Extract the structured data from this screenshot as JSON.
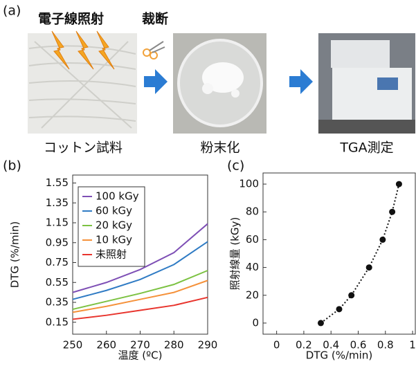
{
  "panel_a": {
    "panel_label": "(a)",
    "irradiation": "電子線照射",
    "cutting": "裁断",
    "captions": [
      "コットン試料",
      "粉末化",
      "TGA測定"
    ]
  },
  "chart_data": [
    {
      "type": "line",
      "panel_label": "(b)",
      "x_label": "温度 (ºC)",
      "y_label": "DTG (%/min)",
      "x": [
        250,
        260,
        270,
        280,
        290
      ],
      "series": [
        {
          "name": "100 kGy",
          "color": "#7e4fb5",
          "values": [
            0.45,
            0.55,
            0.68,
            0.85,
            1.14
          ]
        },
        {
          "name": "60 kGy",
          "color": "#2f7bc4",
          "values": [
            0.38,
            0.47,
            0.58,
            0.73,
            0.96
          ]
        },
        {
          "name": "20 kGy",
          "color": "#7cc242",
          "values": [
            0.28,
            0.36,
            0.44,
            0.53,
            0.67
          ]
        },
        {
          "name": "10 kGy",
          "color": "#f5913a",
          "values": [
            0.25,
            0.31,
            0.38,
            0.45,
            0.57
          ]
        },
        {
          "name": "未照射",
          "color": "#e8342d",
          "values": [
            0.18,
            0.22,
            0.27,
            0.32,
            0.4
          ]
        }
      ],
      "xlim": [
        250,
        290
      ],
      "xticks": [
        250,
        260,
        270,
        280,
        290
      ],
      "ylim": [
        0.03,
        1.63
      ],
      "yticks": [
        0.15,
        0.35,
        0.55,
        0.75,
        0.95,
        1.15,
        1.35,
        1.55
      ],
      "legend": "upper-left"
    },
    {
      "type": "scatter",
      "panel_label": "(c)",
      "x_label": "DTG (%/min)",
      "y_label": "照射線量 (kGy)",
      "x": [
        0.325,
        0.46,
        0.55,
        0.68,
        0.78,
        0.85,
        0.9
      ],
      "values": [
        0,
        10,
        20,
        40,
        60,
        80,
        100
      ],
      "color": "#111111",
      "line_style": "dotted",
      "xlim": [
        -0.1,
        1.02
      ],
      "xticks": [
        0,
        0.2,
        0.4,
        0.6,
        0.8,
        1
      ],
      "ylim": [
        -8,
        108
      ],
      "yticks": [
        0,
        20,
        40,
        60,
        80,
        100
      ]
    }
  ]
}
